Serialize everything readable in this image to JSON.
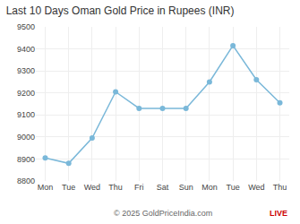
{
  "chart_data": {
    "type": "line",
    "title": "Last 10 Days Oman Gold Price in Rupees (INR)",
    "categories": [
      "Mon",
      "Tue",
      "Wed",
      "Thu",
      "Fri",
      "Sat",
      "Sun",
      "Mon",
      "Tue",
      "Wed",
      "Thu"
    ],
    "values": [
      8905,
      8880,
      8995,
      9205,
      9130,
      9130,
      9130,
      9250,
      9415,
      9260,
      9155
    ],
    "color": "#7ab8d9",
    "marker": "circle",
    "ylim": [
      8800,
      9500
    ],
    "yticks": [
      8800,
      8900,
      9000,
      9100,
      9200,
      9300,
      9400,
      9500
    ],
    "grid": true,
    "annotations": [
      {
        "text": "© 2025 GoldPriceIndia.com",
        "color": "#666666"
      },
      {
        "text": "LIVE",
        "color": "#cc0000"
      }
    ]
  }
}
